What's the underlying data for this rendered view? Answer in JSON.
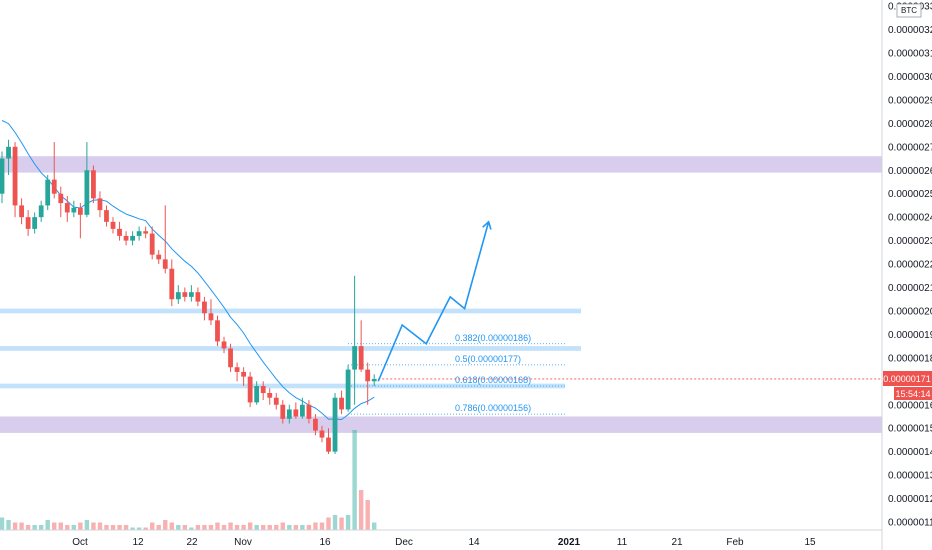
{
  "chart_data": {
    "type": "candlestick",
    "symbol_unit": "BTC",
    "price_axis": {
      "labels": [
        "0.00000330",
        "0.00000320",
        "0.00000310",
        "0.00000300",
        "0.00000290",
        "0.00000280",
        "0.00000270",
        "0.00000260",
        "0.00000250",
        "0.00000240",
        "0.00000230",
        "0.00000220",
        "0.00000210",
        "0.00000200",
        "0.00000190",
        "0.00000180",
        "0.00000170",
        "0.00000160",
        "0.00000150",
        "0.00000140",
        "0.00000130",
        "0.00000120",
        "0.00000110"
      ],
      "min": 1.1e-06,
      "max": 3.3e-06
    },
    "time_axis": {
      "labels": [
        "Oct",
        "12",
        "22",
        "Nov",
        "16",
        "Dec",
        "14",
        "2021",
        "11",
        "21",
        "Feb",
        "15"
      ]
    },
    "current_price": {
      "label": "0.00000171",
      "countdown": "15:54:14",
      "value": 1.71e-06,
      "color": "#ef5350"
    },
    "colors": {
      "up": "#26a69a",
      "down": "#ef5350",
      "ma": "#2196f3",
      "zone_purple": "#d1c4e9",
      "zone_blue": "#bbdefb",
      "projection": "#2196f3"
    },
    "zones": [
      {
        "kind": "purple",
        "low": 2.59e-06,
        "high": 2.66e-06
      },
      {
        "kind": "blue",
        "low": 1.99e-06,
        "high": 2.01e-06
      },
      {
        "kind": "blue",
        "low": 1.83e-06,
        "high": 1.85e-06
      },
      {
        "kind": "blue",
        "low": 1.67e-06,
        "high": 1.69e-06
      },
      {
        "kind": "purple",
        "low": 1.48e-06,
        "high": 1.55e-06
      }
    ],
    "fib_levels": [
      {
        "label": "0.382(0.00000186)",
        "value": 1.86e-06
      },
      {
        "label": "0.5(0.00000177)",
        "value": 1.77e-06
      },
      {
        "label": "0.618(0.00000168)",
        "value": 1.68e-06
      },
      {
        "label": "0.786(0.00000156)",
        "value": 1.56e-06
      }
    ],
    "projection_path": [
      {
        "day": 0,
        "price": 1.7e-06
      },
      {
        "day": 5,
        "price": 1.94e-06
      },
      {
        "day": 10,
        "price": 1.86e-06
      },
      {
        "day": 15,
        "price": 2.06e-06
      },
      {
        "day": 18,
        "price": 2.01e-06
      },
      {
        "day": 23,
        "price": 2.38e-06
      }
    ],
    "candles": [
      [
        2.5e-06,
        2.65e-06,
        2.68e-06,
        2.46e-06,
        5
      ],
      [
        2.65e-06,
        2.7e-06,
        2.73e-06,
        2.58e-06,
        4
      ],
      [
        2.7e-06,
        2.45e-06,
        2.72e-06,
        2.4e-06,
        3
      ],
      [
        2.45e-06,
        2.4e-06,
        2.48e-06,
        2.37e-06,
        3
      ],
      [
        2.4e-06,
        2.35e-06,
        2.43e-06,
        2.32e-06,
        2
      ],
      [
        2.35e-06,
        2.4e-06,
        2.42e-06,
        2.33e-06,
        2
      ],
      [
        2.4e-06,
        2.45e-06,
        2.47e-06,
        2.38e-06,
        2
      ],
      [
        2.45e-06,
        2.56e-06,
        2.58e-06,
        2.43e-06,
        4
      ],
      [
        2.56e-06,
        2.5e-06,
        2.72e-06,
        2.48e-06,
        3
      ],
      [
        2.5e-06,
        2.46e-06,
        2.53e-06,
        2.4e-06,
        3
      ],
      [
        2.46e-06,
        2.42e-06,
        2.49e-06,
        2.38e-06,
        2
      ],
      [
        2.42e-06,
        2.44e-06,
        2.47e-06,
        2.4e-06,
        2
      ],
      [
        2.44e-06,
        2.41e-06,
        2.46e-06,
        2.31e-06,
        3
      ],
      [
        2.41e-06,
        2.6e-06,
        2.72e-06,
        2.4e-06,
        4
      ],
      [
        2.6e-06,
        2.48e-06,
        2.62e-06,
        2.46e-06,
        3
      ],
      [
        2.48e-06,
        2.43e-06,
        2.51e-06,
        2.4e-06,
        3
      ],
      [
        2.43e-06,
        2.38e-06,
        2.45e-06,
        2.36e-06,
        2
      ],
      [
        2.38e-06,
        2.35e-06,
        2.4e-06,
        2.33e-06,
        2
      ],
      [
        2.35e-06,
        2.32e-06,
        2.38e-06,
        2.3e-06,
        2
      ],
      [
        2.32e-06,
        2.3e-06,
        2.34e-06,
        2.28e-06,
        2
      ],
      [
        2.3e-06,
        2.32e-06,
        2.34e-06,
        2.28e-06,
        1
      ],
      [
        2.32e-06,
        2.34e-06,
        2.36e-06,
        2.3e-06,
        1
      ],
      [
        2.34e-06,
        2.33e-06,
        2.36e-06,
        2.31e-06,
        1
      ],
      [
        2.33e-06,
        2.24e-06,
        2.36e-06,
        2.22e-06,
        3
      ],
      [
        2.24e-06,
        2.22e-06,
        2.26e-06,
        2.2e-06,
        2
      ],
      [
        2.22e-06,
        2.18e-06,
        2.45e-06,
        2.16e-06,
        4
      ],
      [
        2.18e-06,
        2.05e-06,
        2.22e-06,
        2.02e-06,
        3
      ],
      [
        2.05e-06,
        2.08e-06,
        2.11e-06,
        2.03e-06,
        2
      ],
      [
        2.08e-06,
        2.06e-06,
        2.1e-06,
        2.04e-06,
        2
      ],
      [
        2.06e-06,
        2.08e-06,
        2.11e-06,
        2.04e-06,
        1
      ],
      [
        2.08e-06,
        2.04e-06,
        2.1e-06,
        2.02e-06,
        2
      ],
      [
        2.04e-06,
        1.99e-06,
        2.06e-06,
        1.96e-06,
        2
      ],
      [
        1.99e-06,
        1.96e-06,
        2.05e-06,
        1.94e-06,
        2
      ],
      [
        1.96e-06,
        1.87e-06,
        1.98e-06,
        1.85e-06,
        3
      ],
      [
        1.87e-06,
        1.84e-06,
        1.89e-06,
        1.82e-06,
        2
      ],
      [
        1.84e-06,
        1.76e-06,
        1.86e-06,
        1.74e-06,
        3
      ],
      [
        1.76e-06,
        1.74e-06,
        1.78e-06,
        1.7e-06,
        2
      ],
      [
        1.74e-06,
        1.72e-06,
        1.76e-06,
        1.68e-06,
        2
      ],
      [
        1.72e-06,
        1.61e-06,
        1.74e-06,
        1.59e-06,
        3
      ],
      [
        1.61e-06,
        1.68e-06,
        1.7e-06,
        1.6e-06,
        2
      ],
      [
        1.68e-06,
        1.65e-06,
        1.7e-06,
        1.62e-06,
        2
      ],
      [
        1.65e-06,
        1.63e-06,
        1.67e-06,
        1.6e-06,
        2
      ],
      [
        1.63e-06,
        1.6e-06,
        1.65e-06,
        1.58e-06,
        2
      ],
      [
        1.6e-06,
        1.54e-06,
        1.62e-06,
        1.52e-06,
        3
      ],
      [
        1.54e-06,
        1.58e-06,
        1.6e-06,
        1.52e-06,
        2
      ],
      [
        1.58e-06,
        1.55e-06,
        1.61e-06,
        1.54e-06,
        2
      ],
      [
        1.55e-06,
        1.6e-06,
        1.63e-06,
        1.54e-06,
        2
      ],
      [
        1.6e-06,
        1.54e-06,
        1.62e-06,
        1.52e-06,
        2
      ],
      [
        1.54e-06,
        1.49e-06,
        1.56e-06,
        1.47e-06,
        3
      ],
      [
        1.49e-06,
        1.46e-06,
        1.51e-06,
        1.44e-06,
        3
      ],
      [
        1.46e-06,
        1.4e-06,
        1.5e-06,
        1.39e-06,
        5
      ],
      [
        1.4e-06,
        1.63e-06,
        1.65e-06,
        1.39e-06,
        6
      ],
      [
        1.63e-06,
        1.58e-06,
        1.66e-06,
        1.56e-06,
        5
      ],
      [
        1.58e-06,
        1.75e-06,
        1.77e-06,
        1.57e-06,
        6
      ],
      [
        1.75e-06,
        1.85e-06,
        2.15e-06,
        1.6e-06,
        40
      ],
      [
        1.85e-06,
        1.75e-06,
        1.96e-06,
        1.74e-06,
        16
      ],
      [
        1.75e-06,
        1.7e-06,
        1.78e-06,
        1.6e-06,
        12
      ],
      [
        1.7e-06,
        1.71e-06,
        1.73e-06,
        1.68e-06,
        3
      ]
    ]
  }
}
